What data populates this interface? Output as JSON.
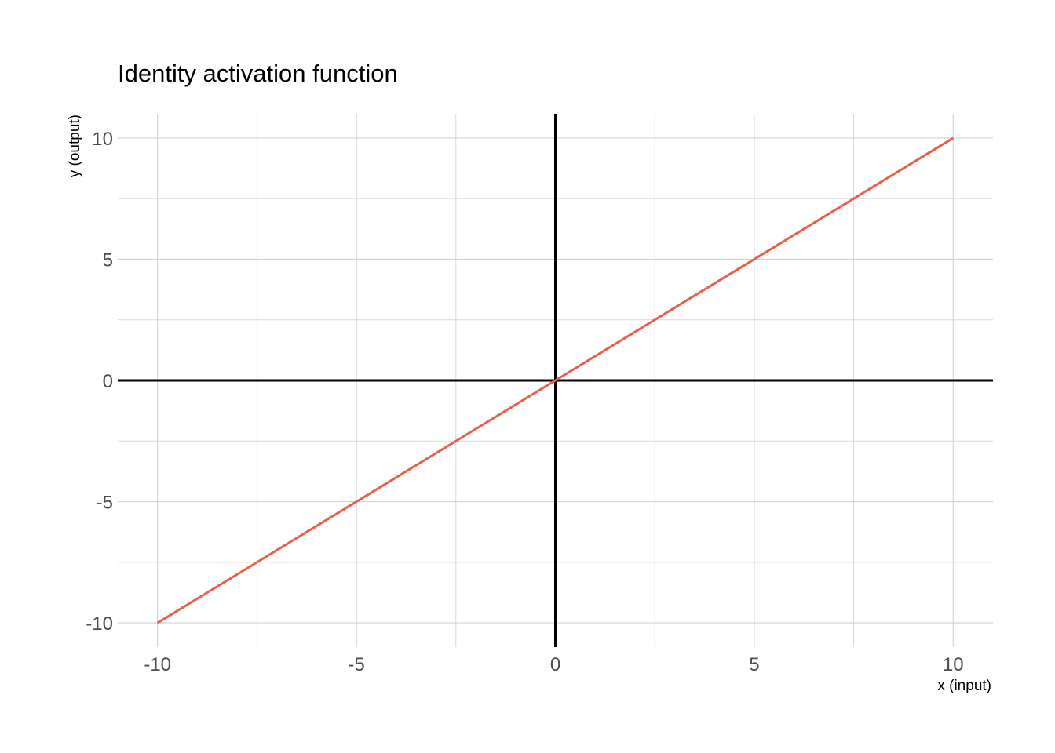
{
  "chart_data": {
    "type": "line",
    "title": "Identity activation function",
    "xlabel": "x (input)",
    "ylabel": "y (output)",
    "xlim": [
      -11,
      11
    ],
    "ylim": [
      -11,
      11
    ],
    "x_ticks": [
      -10,
      -5,
      0,
      5,
      10
    ],
    "y_ticks": [
      -10,
      -5,
      0,
      5,
      10
    ],
    "x_tick_labels": [
      "-10",
      "-5",
      "0",
      "5",
      "10"
    ],
    "y_tick_labels": [
      "-10",
      "-5",
      "0",
      "5",
      "10"
    ],
    "x_minor_ticks": [
      -7.5,
      -2.5,
      2.5,
      7.5
    ],
    "y_minor_ticks": [
      -7.5,
      -2.5,
      2.5,
      7.5
    ],
    "grid": true,
    "zero_lines": true,
    "series": [
      {
        "color": "#e9604a",
        "x": [
          -10,
          -5,
          0,
          5,
          10
        ],
        "y": [
          -10,
          -5,
          0,
          5,
          10
        ]
      }
    ]
  }
}
